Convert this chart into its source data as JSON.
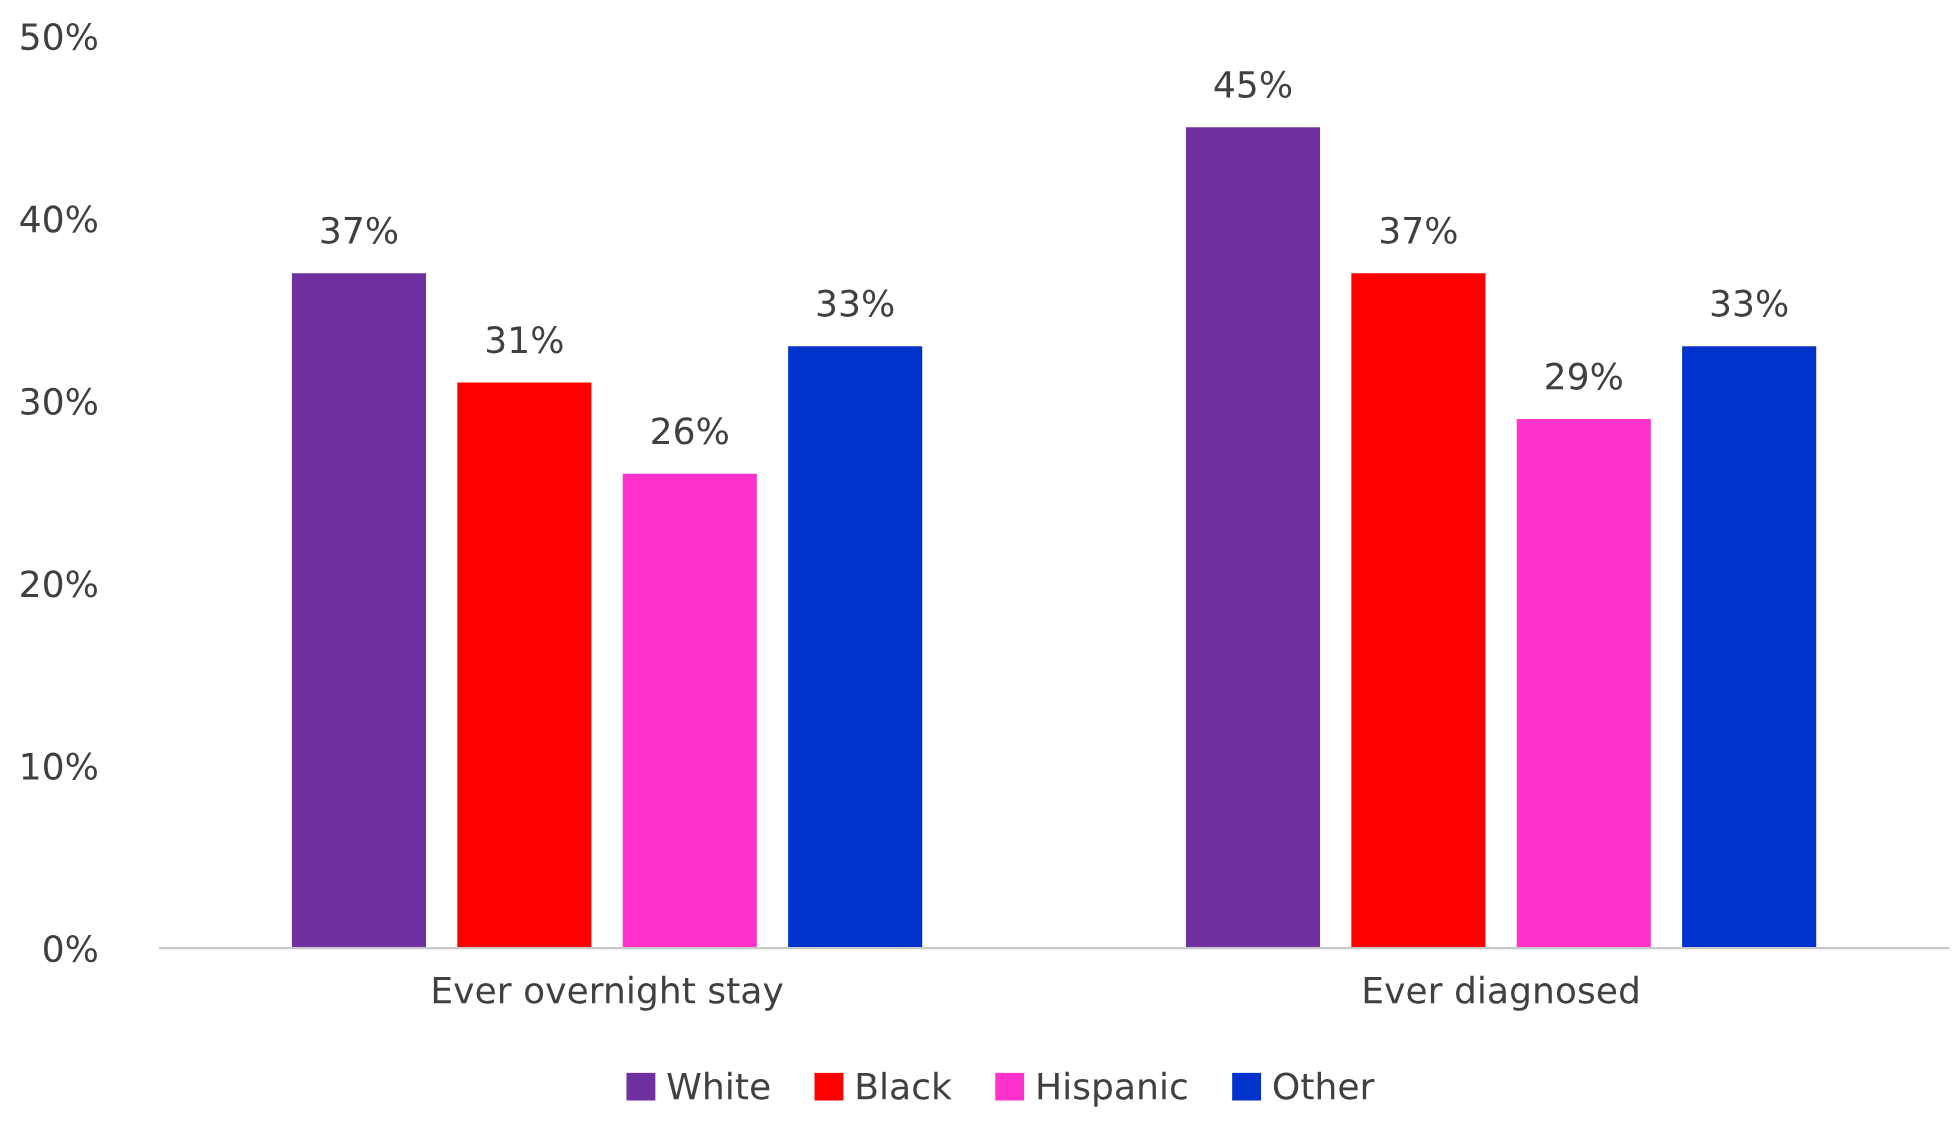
{
  "chart_data": {
    "type": "bar",
    "categories": [
      "Ever overnight stay",
      "Ever diagnosed"
    ],
    "series": [
      {
        "name": "White",
        "color": "#7030a0",
        "values": [
          37,
          45
        ],
        "value_labels": [
          "37%",
          "45%"
        ]
      },
      {
        "name": "Black",
        "color": "#ff0000",
        "values": [
          31,
          37
        ],
        "value_labels": [
          "31%",
          "37%"
        ]
      },
      {
        "name": "Hispanic",
        "color": "#ff33cc",
        "values": [
          26,
          29
        ],
        "value_labels": [
          "26%",
          "29%"
        ]
      },
      {
        "name": "Other",
        "color": "#0033cc",
        "values": [
          33,
          33
        ],
        "value_labels": [
          "33%",
          "33%"
        ]
      }
    ],
    "ylim": [
      0,
      50
    ],
    "yticks": [
      {
        "value": 0,
        "label": "0%"
      },
      {
        "value": 10,
        "label": "10%"
      },
      {
        "value": 20,
        "label": "20%"
      },
      {
        "value": 30,
        "label": "30%"
      },
      {
        "value": 40,
        "label": "40%"
      },
      {
        "value": 50,
        "label": "50%"
      }
    ],
    "grid": false,
    "legend": "bottom"
  }
}
